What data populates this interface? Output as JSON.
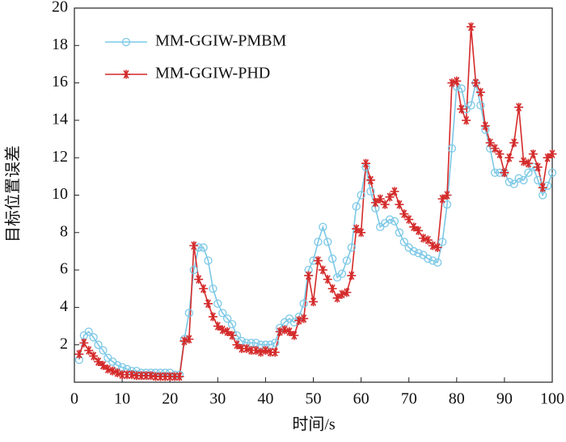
{
  "chart_data": {
    "type": "line",
    "x_label": "时间/s",
    "y_label": "目标位置误差",
    "x": [
      1,
      2,
      3,
      4,
      5,
      6,
      7,
      8,
      9,
      10,
      11,
      12,
      13,
      14,
      15,
      16,
      17,
      18,
      19,
      20,
      21,
      22,
      23,
      24,
      25,
      26,
      27,
      28,
      29,
      30,
      31,
      32,
      33,
      34,
      35,
      36,
      37,
      38,
      39,
      40,
      41,
      42,
      43,
      44,
      45,
      46,
      47,
      48,
      49,
      50,
      51,
      52,
      53,
      54,
      55,
      56,
      57,
      58,
      59,
      60,
      61,
      62,
      63,
      64,
      65,
      66,
      67,
      68,
      69,
      70,
      71,
      72,
      73,
      74,
      75,
      76,
      77,
      78,
      79,
      80,
      81,
      82,
      83,
      84,
      85,
      86,
      87,
      88,
      89,
      90,
      91,
      92,
      93,
      94,
      95,
      96,
      97,
      98,
      99,
      100
    ],
    "series": [
      {
        "name": "MM-GGIW-PMBM",
        "color": "#7cc8e6",
        "marker": "circle",
        "values": [
          1.2,
          2.5,
          2.7,
          2.4,
          2.0,
          1.7,
          1.3,
          1.1,
          0.9,
          0.8,
          0.7,
          0.6,
          0.6,
          0.5,
          0.5,
          0.5,
          0.5,
          0.5,
          0.5,
          0.5,
          0.4,
          0.4,
          2.3,
          3.7,
          6.0,
          7.2,
          7.2,
          6.5,
          5.0,
          4.2,
          3.7,
          3.4,
          3.1,
          2.5,
          2.2,
          2.1,
          2.1,
          2.1,
          2.0,
          2.0,
          2.0,
          2.1,
          2.9,
          3.2,
          3.4,
          3.2,
          3.5,
          4.2,
          6.0,
          6.5,
          7.5,
          8.3,
          7.5,
          6.6,
          5.6,
          5.8,
          6.5,
          7.2,
          9.4,
          10.0,
          11.5,
          10.2,
          9.3,
          8.3,
          8.5,
          8.7,
          8.6,
          8.0,
          7.5,
          7.2,
          7.0,
          6.9,
          6.8,
          6.6,
          6.5,
          6.4,
          7.5,
          9.5,
          12.5,
          15.8,
          15.7,
          14.6,
          14.8,
          16.0,
          14.8,
          13.5,
          12.5,
          11.2,
          11.2,
          11.2,
          10.7,
          10.6,
          10.9,
          10.8,
          11.2,
          11.5,
          10.8,
          10.0,
          10.5,
          11.2
        ]
      },
      {
        "name": "MM-GGIW-PHD",
        "color": "#d42a2a",
        "marker": "star",
        "values": [
          1.5,
          2.1,
          1.7,
          1.4,
          1.1,
          0.9,
          0.7,
          0.6,
          0.5,
          0.4,
          0.4,
          0.4,
          0.35,
          0.35,
          0.35,
          0.35,
          0.3,
          0.3,
          0.3,
          0.3,
          0.3,
          0.3,
          2.2,
          2.3,
          7.3,
          5.5,
          5.0,
          4.2,
          3.5,
          3.0,
          2.8,
          2.7,
          2.5,
          2.0,
          1.8,
          1.8,
          1.7,
          1.7,
          1.6,
          1.7,
          1.6,
          1.6,
          2.7,
          2.8,
          2.7,
          2.5,
          3.3,
          3.4,
          5.7,
          4.3,
          6.5,
          6.0,
          5.5,
          5.0,
          4.5,
          4.7,
          4.8,
          5.7,
          8.2,
          8.0,
          11.7,
          10.8,
          9.6,
          9.8,
          9.5,
          9.9,
          10.2,
          9.5,
          9.0,
          8.7,
          8.3,
          8.1,
          7.7,
          7.6,
          7.3,
          7.2,
          9.8,
          10.0,
          16.0,
          16.1,
          14.6,
          14.0,
          19.0,
          16.0,
          15.5,
          13.7,
          12.8,
          12.5,
          12.2,
          11.2,
          12.0,
          12.8,
          14.7,
          11.8,
          11.7,
          12.2,
          11.5,
          10.4,
          12.0,
          12.2
        ]
      }
    ],
    "xlim": [
      0,
      100
    ],
    "xticks": [
      0,
      10,
      20,
      30,
      40,
      50,
      60,
      70,
      80,
      90,
      100
    ],
    "ylim": [
      0,
      20
    ],
    "yticks": [
      2,
      4,
      6,
      8,
      10,
      12,
      14,
      16,
      18,
      20
    ],
    "legend": "upper left"
  }
}
